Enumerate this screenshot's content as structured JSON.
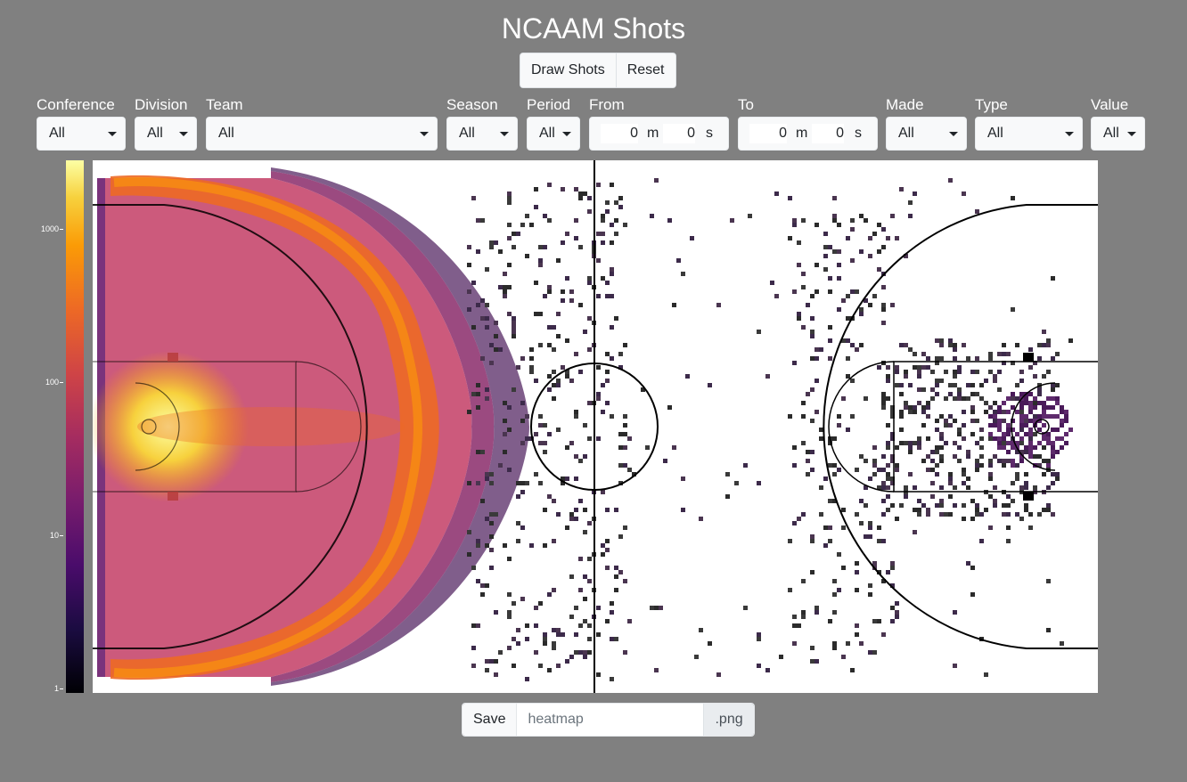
{
  "app": {
    "title": "NCAAM Shots"
  },
  "actions": {
    "draw_label": "Draw Shots",
    "reset_label": "Reset"
  },
  "filters": {
    "conference": {
      "label": "Conference",
      "value": "All"
    },
    "division": {
      "label": "Division",
      "value": "All"
    },
    "team": {
      "label": "Team",
      "value": "All"
    },
    "season": {
      "label": "Season",
      "value": "All"
    },
    "period": {
      "label": "Period",
      "value": "All"
    },
    "from": {
      "label": "From",
      "minutes": "0",
      "m_unit": "m",
      "seconds": "0",
      "s_unit": "s"
    },
    "to": {
      "label": "To",
      "minutes": "0",
      "m_unit": "m",
      "seconds": "0",
      "s_unit": "s"
    },
    "made": {
      "label": "Made",
      "value": "All"
    },
    "type": {
      "label": "Type",
      "value": "All"
    },
    "value": {
      "label": "Value",
      "value": "All"
    }
  },
  "colorbar": {
    "scale": "log",
    "ticks": [
      "1000",
      "100",
      "10",
      "1"
    ],
    "colormap": "inferno"
  },
  "save": {
    "button_label": "Save",
    "filename_placeholder": "heatmap",
    "extension": ".png"
  },
  "chart_data": {
    "type": "heatmap",
    "title": "",
    "scale": "log",
    "range": [
      1,
      3000
    ],
    "colorbar_ticks": [
      1,
      10,
      100,
      1000
    ],
    "description_of_density": "Dense shot frequency on left half court: hot spot near left basket and arc-shaped band along the three-point line; sparse scattered shots elsewhere"
  }
}
